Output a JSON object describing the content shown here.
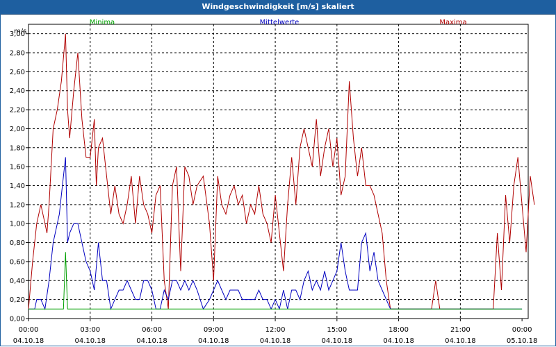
{
  "window": {
    "title": "Windgeschwindigkeit [m/s] skaliert"
  },
  "chart_data": {
    "type": "line",
    "ylabel": "m/s",
    "ylim": [
      0,
      3.0
    ],
    "grid": true,
    "x_ticks": [
      {
        "time": "00:00",
        "date": "04.10.18"
      },
      {
        "time": "03:00",
        "date": "04.10.18"
      },
      {
        "time": "06:00",
        "date": "04.10.18"
      },
      {
        "time": "09:00",
        "date": "04.10.18"
      },
      {
        "time": "12:00",
        "date": "04.10.18"
      },
      {
        "time": "15:00",
        "date": "04.10.18"
      },
      {
        "time": "18:00",
        "date": "04.10.18"
      },
      {
        "time": "21:00",
        "date": "04.10.18"
      },
      {
        "time": "00:00",
        "date": "05.10.18"
      }
    ],
    "y_ticks": [
      "0,00",
      "0,20",
      "0,40",
      "0,60",
      "0,80",
      "1,00",
      "1,20",
      "1,40",
      "1,60",
      "1,80",
      "2,00",
      "2,20",
      "2,40",
      "2,60",
      "2,80",
      "3,00"
    ],
    "series": [
      {
        "name": "Minima",
        "color": "#00a000",
        "points": [
          [
            0,
            0.1
          ],
          [
            1.7,
            0.1
          ],
          [
            1.8,
            0.7
          ],
          [
            1.9,
            0.1
          ],
          [
            24,
            0.1
          ]
        ]
      },
      {
        "name": "Mittelwerte",
        "color": "#0000c0",
        "points": [
          [
            0,
            0.1
          ],
          [
            0.3,
            0.1
          ],
          [
            0.4,
            0.2
          ],
          [
            0.6,
            0.2
          ],
          [
            0.8,
            0.1
          ],
          [
            1.0,
            0.4
          ],
          [
            1.2,
            0.8
          ],
          [
            1.5,
            1.1
          ],
          [
            1.6,
            1.3
          ],
          [
            1.7,
            1.5
          ],
          [
            1.8,
            1.7
          ],
          [
            1.9,
            0.8
          ],
          [
            2.0,
            0.9
          ],
          [
            2.2,
            1.0
          ],
          [
            2.4,
            1.0
          ],
          [
            2.6,
            0.8
          ],
          [
            2.8,
            0.6
          ],
          [
            3.0,
            0.5
          ],
          [
            3.2,
            0.3
          ],
          [
            3.4,
            0.8
          ],
          [
            3.6,
            0.4
          ],
          [
            3.8,
            0.4
          ],
          [
            4.0,
            0.1
          ],
          [
            4.2,
            0.2
          ],
          [
            4.4,
            0.3
          ],
          [
            4.6,
            0.3
          ],
          [
            4.8,
            0.4
          ],
          [
            5.0,
            0.3
          ],
          [
            5.2,
            0.2
          ],
          [
            5.4,
            0.2
          ],
          [
            5.6,
            0.4
          ],
          [
            5.8,
            0.4
          ],
          [
            6.0,
            0.3
          ],
          [
            6.2,
            0.1
          ],
          [
            6.4,
            0.1
          ],
          [
            6.6,
            0.3
          ],
          [
            6.8,
            0.2
          ],
          [
            7.0,
            0.4
          ],
          [
            7.2,
            0.4
          ],
          [
            7.4,
            0.3
          ],
          [
            7.6,
            0.4
          ],
          [
            7.8,
            0.3
          ],
          [
            8.0,
            0.4
          ],
          [
            8.2,
            0.3
          ],
          [
            8.5,
            0.1
          ],
          [
            8.8,
            0.2
          ],
          [
            9.0,
            0.3
          ],
          [
            9.2,
            0.4
          ],
          [
            9.4,
            0.3
          ],
          [
            9.6,
            0.2
          ],
          [
            9.8,
            0.3
          ],
          [
            10.0,
            0.3
          ],
          [
            10.2,
            0.3
          ],
          [
            10.4,
            0.2
          ],
          [
            10.6,
            0.2
          ],
          [
            10.8,
            0.2
          ],
          [
            11.0,
            0.2
          ],
          [
            11.2,
            0.3
          ],
          [
            11.4,
            0.2
          ],
          [
            11.6,
            0.2
          ],
          [
            11.8,
            0.1
          ],
          [
            12.0,
            0.2
          ],
          [
            12.2,
            0.1
          ],
          [
            12.4,
            0.3
          ],
          [
            12.6,
            0.1
          ],
          [
            12.8,
            0.3
          ],
          [
            13.0,
            0.3
          ],
          [
            13.2,
            0.2
          ],
          [
            13.4,
            0.4
          ],
          [
            13.6,
            0.5
          ],
          [
            13.8,
            0.3
          ],
          [
            14.0,
            0.4
          ],
          [
            14.2,
            0.3
          ],
          [
            14.4,
            0.5
          ],
          [
            14.6,
            0.3
          ],
          [
            14.8,
            0.4
          ],
          [
            15.0,
            0.5
          ],
          [
            15.2,
            0.8
          ],
          [
            15.4,
            0.5
          ],
          [
            15.6,
            0.3
          ],
          [
            15.8,
            0.3
          ],
          [
            16.0,
            0.3
          ],
          [
            16.2,
            0.8
          ],
          [
            16.4,
            0.9
          ],
          [
            16.6,
            0.5
          ],
          [
            16.8,
            0.7
          ],
          [
            17.0,
            0.4
          ],
          [
            17.2,
            0.3
          ],
          [
            17.4,
            0.2
          ],
          [
            17.6,
            0.1
          ],
          [
            24,
            0.1
          ]
        ]
      },
      {
        "name": "Maxima",
        "color": "#b00000",
        "points": [
          [
            0,
            0.1
          ],
          [
            0.2,
            0.6
          ],
          [
            0.4,
            1.0
          ],
          [
            0.6,
            1.2
          ],
          [
            0.8,
            1.0
          ],
          [
            0.9,
            0.9
          ],
          [
            1.0,
            1.2
          ],
          [
            1.2,
            2.0
          ],
          [
            1.4,
            2.2
          ],
          [
            1.6,
            2.5
          ],
          [
            1.8,
            3.0
          ],
          [
            1.9,
            2.2
          ],
          [
            2.0,
            1.9
          ],
          [
            2.2,
            2.4
          ],
          [
            2.4,
            2.8
          ],
          [
            2.6,
            2.1
          ],
          [
            2.8,
            1.7
          ],
          [
            3.0,
            1.7
          ],
          [
            3.2,
            2.1
          ],
          [
            3.3,
            1.4
          ],
          [
            3.4,
            1.8
          ],
          [
            3.6,
            1.9
          ],
          [
            3.8,
            1.5
          ],
          [
            4.0,
            1.1
          ],
          [
            4.2,
            1.4
          ],
          [
            4.4,
            1.1
          ],
          [
            4.6,
            1.0
          ],
          [
            4.8,
            1.2
          ],
          [
            5.0,
            1.5
          ],
          [
            5.2,
            1.0
          ],
          [
            5.4,
            1.5
          ],
          [
            5.6,
            1.2
          ],
          [
            5.8,
            1.1
          ],
          [
            6.0,
            0.9
          ],
          [
            6.2,
            1.3
          ],
          [
            6.4,
            1.4
          ],
          [
            6.6,
            0.4
          ],
          [
            6.8,
            0.1
          ],
          [
            7.0,
            1.4
          ],
          [
            7.2,
            1.6
          ],
          [
            7.4,
            0.5
          ],
          [
            7.6,
            1.6
          ],
          [
            7.8,
            1.5
          ],
          [
            8.0,
            1.2
          ],
          [
            8.2,
            1.4
          ],
          [
            8.5,
            1.5
          ],
          [
            8.8,
            1.0
          ],
          [
            9.0,
            0.4
          ],
          [
            9.2,
            1.5
          ],
          [
            9.4,
            1.2
          ],
          [
            9.6,
            1.1
          ],
          [
            9.8,
            1.3
          ],
          [
            10.0,
            1.4
          ],
          [
            10.2,
            1.2
          ],
          [
            10.4,
            1.3
          ],
          [
            10.6,
            1.0
          ],
          [
            10.8,
            1.2
          ],
          [
            11.0,
            1.1
          ],
          [
            11.2,
            1.4
          ],
          [
            11.4,
            1.1
          ],
          [
            11.6,
            1.0
          ],
          [
            11.8,
            0.8
          ],
          [
            12.0,
            1.3
          ],
          [
            12.2,
            0.9
          ],
          [
            12.4,
            0.5
          ],
          [
            12.6,
            1.2
          ],
          [
            12.8,
            1.7
          ],
          [
            13.0,
            1.2
          ],
          [
            13.2,
            1.8
          ],
          [
            13.4,
            2.0
          ],
          [
            13.6,
            1.8
          ],
          [
            13.8,
            1.6
          ],
          [
            14.0,
            2.1
          ],
          [
            14.2,
            1.5
          ],
          [
            14.4,
            1.8
          ],
          [
            14.6,
            2.0
          ],
          [
            14.8,
            1.6
          ],
          [
            15.0,
            1.9
          ],
          [
            15.2,
            1.3
          ],
          [
            15.4,
            1.5
          ],
          [
            15.6,
            2.5
          ],
          [
            15.8,
            1.9
          ],
          [
            16.0,
            1.5
          ],
          [
            16.2,
            1.8
          ],
          [
            16.4,
            1.4
          ],
          [
            16.6,
            1.4
          ],
          [
            16.8,
            1.3
          ],
          [
            17.0,
            1.1
          ],
          [
            17.2,
            0.9
          ],
          [
            17.4,
            0.4
          ],
          [
            17.6,
            0.1
          ],
          [
            19.6,
            0.1
          ],
          [
            19.8,
            0.4
          ],
          [
            20.0,
            0.1
          ],
          [
            22.6,
            0.1
          ],
          [
            22.8,
            0.9
          ],
          [
            23.0,
            0.3
          ],
          [
            23.2,
            1.3
          ],
          [
            23.4,
            0.8
          ],
          [
            23.6,
            1.4
          ],
          [
            23.8,
            1.7
          ],
          [
            24.0,
            1.2
          ],
          [
            24.2,
            0.7
          ],
          [
            24.4,
            1.5
          ],
          [
            24.6,
            1.2
          ]
        ]
      }
    ]
  }
}
